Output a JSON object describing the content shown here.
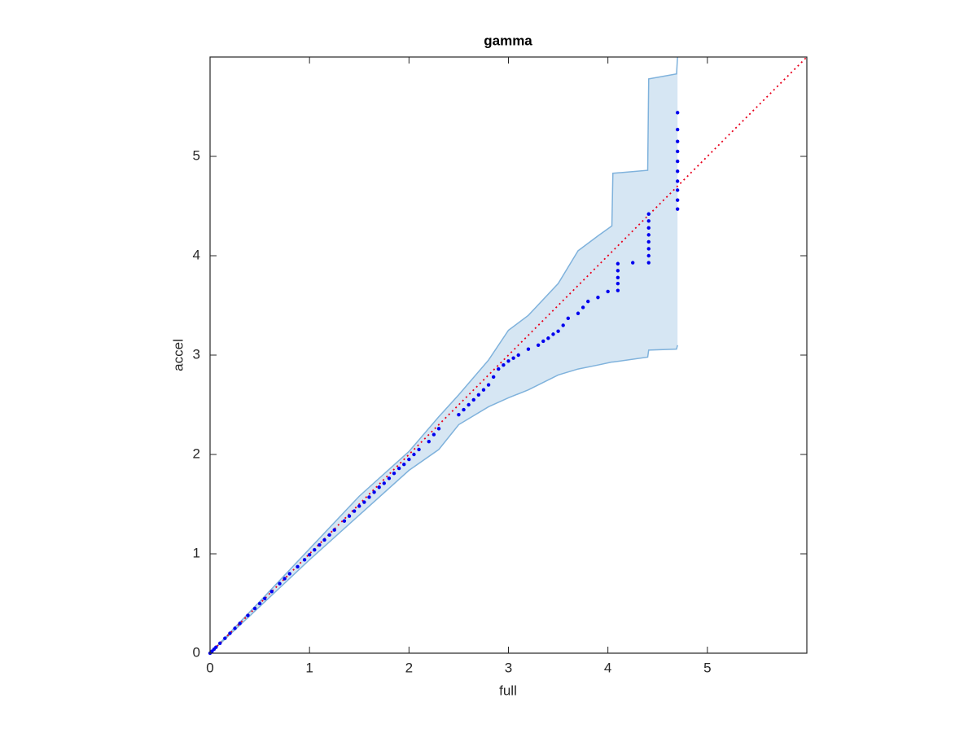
{
  "chart_data": {
    "type": "scatter",
    "title": "gamma",
    "xlabel": "full",
    "ylabel": "accel",
    "xlim": [
      0,
      6
    ],
    "ylim": [
      0,
      6
    ],
    "xticks": [
      0,
      1,
      2,
      3,
      4,
      5
    ],
    "yticks": [
      0,
      1,
      2,
      3,
      4,
      5
    ],
    "band": {
      "color": "#d6e6f3",
      "edge_color": "#7fb2dc",
      "x": [
        0,
        0.5,
        1.0,
        1.5,
        2.0,
        2.3,
        2.5,
        2.8,
        3.0,
        3.2,
        3.5,
        3.7,
        3.9,
        4.04,
        4.05,
        4.4,
        4.41,
        4.69,
        4.7
      ],
      "upper": [
        0,
        0.52,
        1.05,
        1.58,
        2.03,
        2.38,
        2.6,
        2.95,
        3.25,
        3.4,
        3.72,
        4.05,
        4.2,
        4.3,
        4.83,
        4.86,
        5.78,
        5.83,
        6.0
      ],
      "lower": [
        0,
        0.47,
        0.94,
        1.39,
        1.84,
        2.05,
        2.3,
        2.48,
        2.57,
        2.65,
        2.8,
        2.86,
        2.9,
        2.93,
        2.93,
        2.98,
        3.05,
        3.06,
        3.1
      ]
    },
    "reference_line": {
      "color": "#e8001c",
      "x": [
        0,
        6
      ],
      "y": [
        0,
        6
      ]
    },
    "points": {
      "color": "#0000ee",
      "x": [
        0,
        0.02,
        0.04,
        0.06,
        0.1,
        0.15,
        0.2,
        0.25,
        0.3,
        0.38,
        0.45,
        0.5,
        0.55,
        0.62,
        0.7,
        0.75,
        0.8,
        0.88,
        0.95,
        1.0,
        1.05,
        1.1,
        1.15,
        1.2,
        1.25,
        1.35,
        1.4,
        1.45,
        1.5,
        1.55,
        1.6,
        1.65,
        1.7,
        1.75,
        1.8,
        1.85,
        1.9,
        1.95,
        2.0,
        2.05,
        2.1,
        2.2,
        2.25,
        2.3,
        2.5,
        2.55,
        2.6,
        2.65,
        2.7,
        2.75,
        2.8,
        2.85,
        2.9,
        2.95,
        3.0,
        3.05,
        3.1,
        3.2,
        3.3,
        3.35,
        3.4,
        3.45,
        3.5,
        3.55,
        3.6,
        3.7,
        3.75,
        3.8,
        3.9,
        4.0,
        4.1,
        4.1,
        4.1,
        4.1,
        4.1,
        4.25,
        4.41,
        4.41,
        4.41,
        4.41,
        4.41,
        4.41,
        4.41,
        4.41,
        4.7,
        4.7,
        4.7,
        4.7,
        4.7,
        4.7,
        4.7,
        4.7,
        4.7,
        4.7
      ],
      "y": [
        0,
        0.02,
        0.04,
        0.06,
        0.1,
        0.15,
        0.2,
        0.25,
        0.3,
        0.38,
        0.45,
        0.5,
        0.55,
        0.62,
        0.7,
        0.75,
        0.8,
        0.87,
        0.94,
        0.99,
        1.04,
        1.09,
        1.14,
        1.19,
        1.24,
        1.33,
        1.38,
        1.43,
        1.48,
        1.52,
        1.57,
        1.62,
        1.67,
        1.71,
        1.76,
        1.81,
        1.86,
        1.9,
        1.95,
        2.0,
        2.05,
        2.13,
        2.2,
        2.26,
        2.4,
        2.45,
        2.5,
        2.55,
        2.6,
        2.65,
        2.7,
        2.78,
        2.86,
        2.9,
        2.94,
        2.97,
        3.0,
        3.06,
        3.1,
        3.14,
        3.17,
        3.21,
        3.24,
        3.3,
        3.37,
        3.42,
        3.48,
        3.54,
        3.58,
        3.64,
        3.65,
        3.72,
        3.78,
        3.85,
        3.92,
        3.93,
        3.93,
        4.0,
        4.07,
        4.14,
        4.21,
        4.28,
        4.35,
        4.42,
        4.47,
        4.56,
        4.66,
        4.75,
        4.85,
        4.95,
        5.05,
        5.15,
        5.27,
        5.44
      ]
    }
  }
}
